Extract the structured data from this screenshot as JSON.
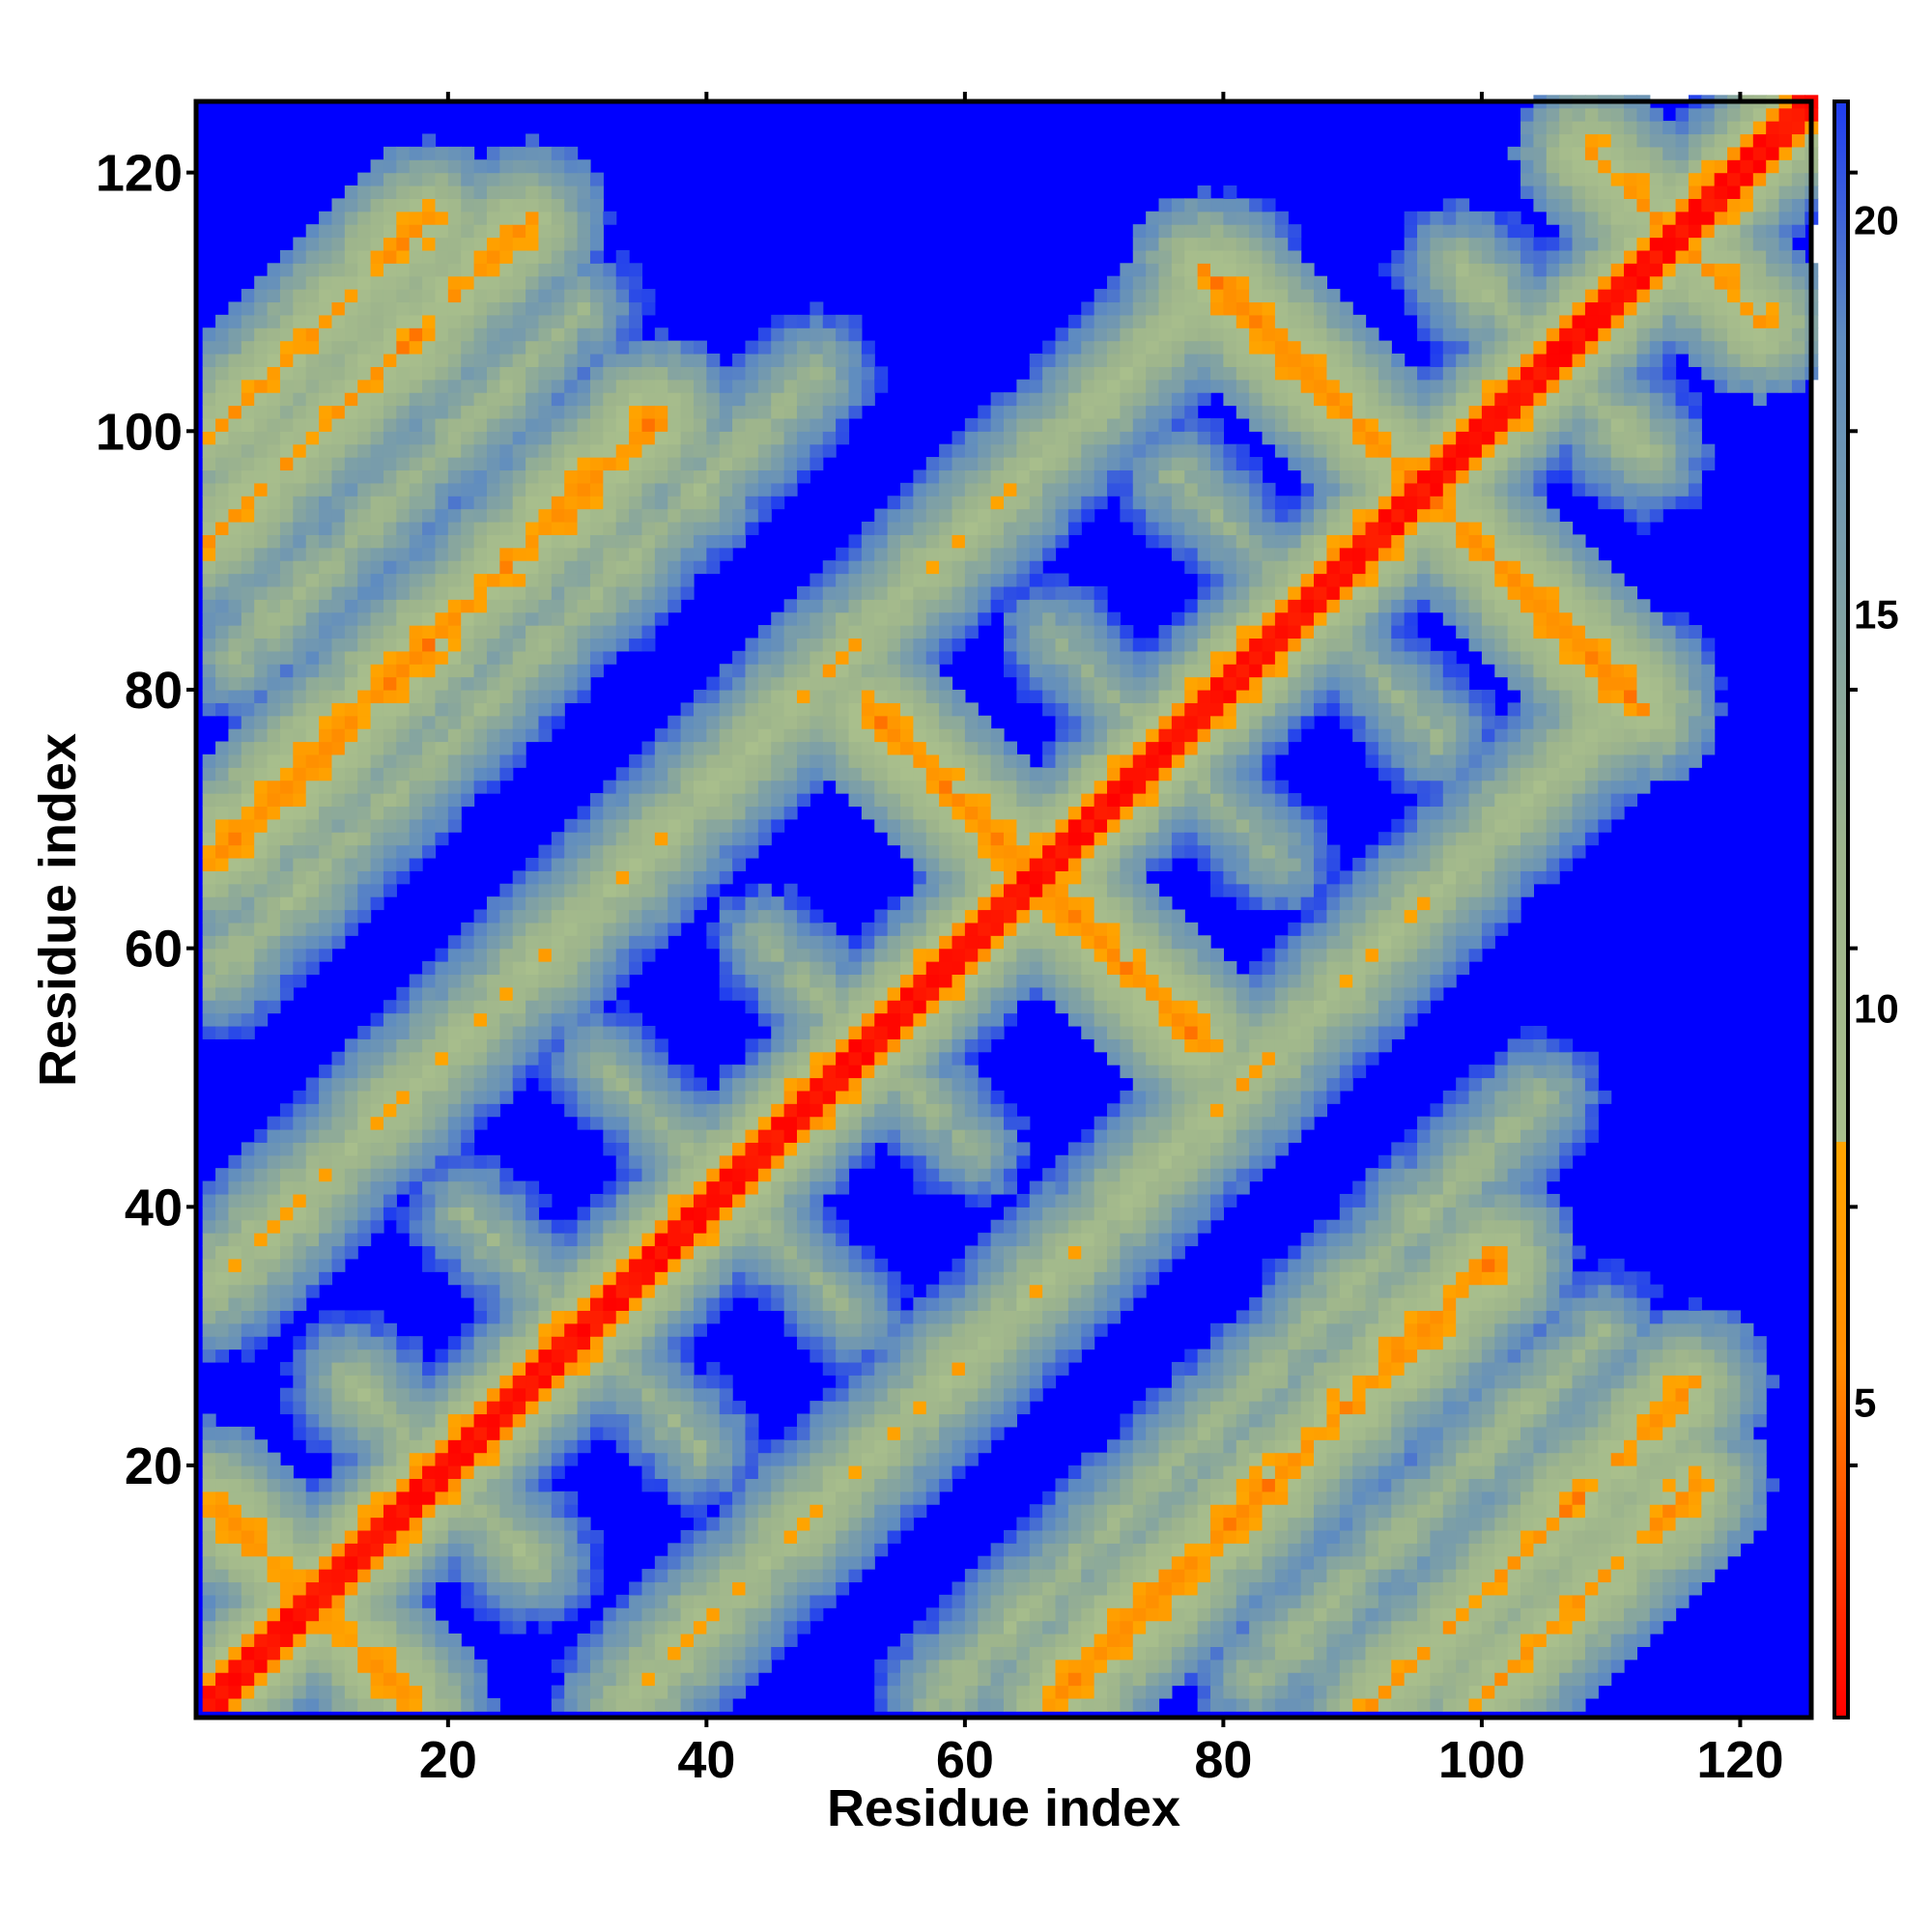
{
  "chart_data": {
    "type": "heatmap",
    "title": "",
    "xlabel": "Residue index",
    "ylabel": "Residue index",
    "n_residues": 125,
    "xlim": [
      1,
      125
    ],
    "ylim": [
      1,
      125
    ],
    "x_ticks": [
      20,
      40,
      60,
      80,
      100,
      120
    ],
    "y_ticks": [
      20,
      40,
      60,
      80,
      100,
      120
    ],
    "x_tick_labels": [
      "20",
      "40",
      "60",
      "80",
      "100",
      "120"
    ],
    "y_tick_labels": [
      "20",
      "40",
      "60",
      "80",
      "100",
      "120"
    ],
    "colorbar": {
      "range": [
        1,
        21.5
      ],
      "ticks": [
        5,
        10,
        15,
        20
      ],
      "tick_labels": [
        "5",
        "10",
        "15",
        "20"
      ],
      "stops": [
        {
          "value": 1,
          "color": "#ff0000"
        },
        {
          "value": 5.5,
          "color": "#ff8c00"
        },
        {
          "value": 8.3,
          "color": "#ffa500"
        },
        {
          "value": 8.3,
          "color": "#a9bf8c"
        },
        {
          "value": 12,
          "color": "#9db48c"
        },
        {
          "value": 18.5,
          "color": "#5f8cc0"
        },
        {
          "value": 21.5,
          "color": "#1f3cf0"
        }
      ],
      "background_color": "#0000ff"
    },
    "matrix_description": "symmetric residue-residue distance map; distance below 21 shown with color scale, otherwise blue",
    "features": [
      {
        "kind": "diagonal",
        "value": 1.5
      },
      {
        "kind": "antiparallel",
        "sum": 18,
        "from": 1,
        "to": 17,
        "value": 6.5
      },
      {
        "kind": "antiparallel",
        "sum": 38,
        "from": 12,
        "to": 26,
        "value": 10.5
      },
      {
        "kind": "antiparallel",
        "sum": 60,
        "from": 21,
        "to": 39,
        "value": 12
      },
      {
        "kind": "antiparallel",
        "sum": 82,
        "from": 31,
        "to": 51,
        "value": 12
      },
      {
        "kind": "antiparallel",
        "sum": 104,
        "from": 44,
        "to": 60,
        "value": 12
      },
      {
        "kind": "antiparallel",
        "sum": 130,
        "from": 52,
        "to": 78,
        "value": 5.5
      },
      {
        "kind": "antiparallel",
        "sum": 150,
        "from": 66,
        "to": 84,
        "value": 12
      },
      {
        "kind": "antiparallel",
        "sum": 172,
        "from": 76,
        "to": 96,
        "value": 12
      },
      {
        "kind": "antiparallel",
        "sum": 190,
        "from": 78,
        "to": 112,
        "value": 6
      },
      {
        "kind": "antiparallel",
        "sum": 210,
        "from": 98,
        "to": 112,
        "value": 10.5
      },
      {
        "kind": "antiparallel",
        "sum": 229,
        "from": 108,
        "to": 121,
        "value": 6
      },
      {
        "kind": "antiparallel",
        "sum": 250,
        "from": 125,
        "to": 125,
        "value": 12
      },
      {
        "kind": "parallel",
        "offset": 32,
        "from": 1,
        "to": 80,
        "value": 9
      },
      {
        "kind": "parallel",
        "offset": 56,
        "from": 1,
        "to": 48,
        "value": 11
      },
      {
        "kind": "parallel",
        "offset": 65,
        "from": 1,
        "to": 36,
        "value": 6
      },
      {
        "kind": "parallel",
        "offset": 79,
        "from": 3,
        "to": 30,
        "value": 11
      },
      {
        "kind": "parallel",
        "offset": 90,
        "from": 1,
        "to": 26,
        "value": 7
      },
      {
        "kind": "parallel",
        "offset": 98,
        "from": 1,
        "to": 18,
        "value": 7
      }
    ]
  }
}
